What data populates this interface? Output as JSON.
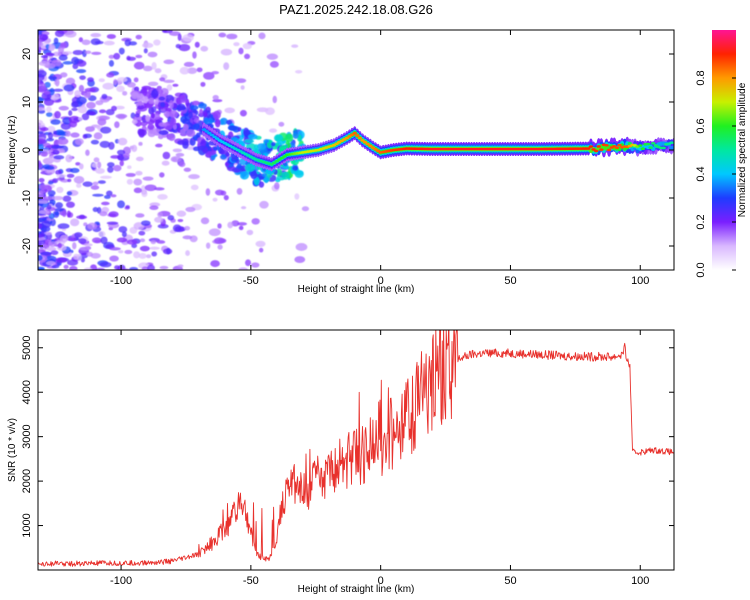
{
  "title": "PAZ1.2025.242.18.08.G26",
  "colors": {
    "snr_line": "#e8312c",
    "background": "#ffffff",
    "axis": "#000000"
  },
  "chart_data": [
    {
      "type": "heatmap",
      "title": "PAZ1.2025.242.18.08.G26",
      "xlabel": "Height of straight line (km)",
      "ylabel": "Frequency (Hz)",
      "xlim": [
        -132,
        113
      ],
      "ylim": [
        -25,
        25
      ],
      "xticks": [
        -100,
        -50,
        0,
        50,
        100
      ],
      "yticks": [
        -20,
        -10,
        0,
        10,
        20
      ],
      "colorbar": {
        "label": "Normalized spectral amplitude",
        "range": [
          0.0,
          1.0
        ],
        "ticks": [
          0.0,
          0.2,
          0.4,
          0.6,
          0.8
        ],
        "tick_labels": [
          "0.0",
          "0.2",
          "0.4",
          "0.6",
          "0.8"
        ]
      },
      "ridge": {
        "description": "dominant frequency track",
        "x": [
          -90,
          -80,
          -70,
          -62,
          -55,
          -48,
          -42,
          -36,
          -30,
          -24,
          -18,
          -13,
          -10,
          -7,
          -3,
          0,
          5,
          10,
          20,
          40,
          60,
          80,
          95,
          100,
          105,
          113
        ],
        "y": [
          8,
          7,
          5,
          2,
          0,
          -2,
          -3,
          -1,
          -0.5,
          0,
          1,
          2.5,
          3.5,
          2,
          0.5,
          -0.5,
          0,
          0.3,
          0.2,
          0.2,
          0.2,
          0.3,
          0.8,
          0.5,
          0.8,
          1.0
        ],
        "amplitude": [
          0.25,
          0.3,
          0.35,
          0.4,
          0.45,
          0.5,
          0.55,
          0.6,
          0.7,
          0.72,
          0.75,
          0.8,
          0.85,
          0.8,
          0.82,
          0.85,
          0.88,
          0.9,
          0.92,
          0.92,
          0.92,
          0.9,
          0.85,
          0.6,
          0.55,
          0.5
        ]
      }
    },
    {
      "type": "line",
      "xlabel": "Height of straight line (km)",
      "ylabel": "SNR (10 * v/v)",
      "xlim": [
        -132,
        113
      ],
      "ylim": [
        0,
        5400
      ],
      "xticks": [
        -100,
        -50,
        0,
        50,
        100
      ],
      "yticks": [
        1000,
        2000,
        3000,
        4000,
        5000
      ],
      "series": [
        {
          "name": "SNR",
          "x": [
            -132,
            -120,
            -110,
            -100,
            -90,
            -80,
            -70,
            -65,
            -60,
            -56,
            -54,
            -52,
            -50,
            -48,
            -45,
            -42,
            -40,
            -38,
            -35,
            -32,
            -30,
            -25,
            -20,
            -15,
            -10,
            -5,
            0,
            5,
            10,
            15,
            20,
            25,
            30,
            35,
            40,
            50,
            60,
            70,
            80,
            90,
            93,
            94,
            95,
            96,
            97,
            100,
            105,
            113
          ],
          "y": [
            150,
            140,
            150,
            150,
            160,
            200,
            350,
            600,
            900,
            1300,
            1500,
            1200,
            800,
            400,
            250,
            300,
            700,
            1500,
            2000,
            1800,
            1700,
            2000,
            2200,
            2400,
            2500,
            2700,
            2900,
            3100,
            3400,
            3800,
            4200,
            4500,
            4750,
            4850,
            4880,
            4880,
            4850,
            4820,
            4800,
            4800,
            4850,
            5000,
            4700,
            4600,
            2650,
            2650,
            2700,
            2650
          ]
        }
      ]
    }
  ]
}
